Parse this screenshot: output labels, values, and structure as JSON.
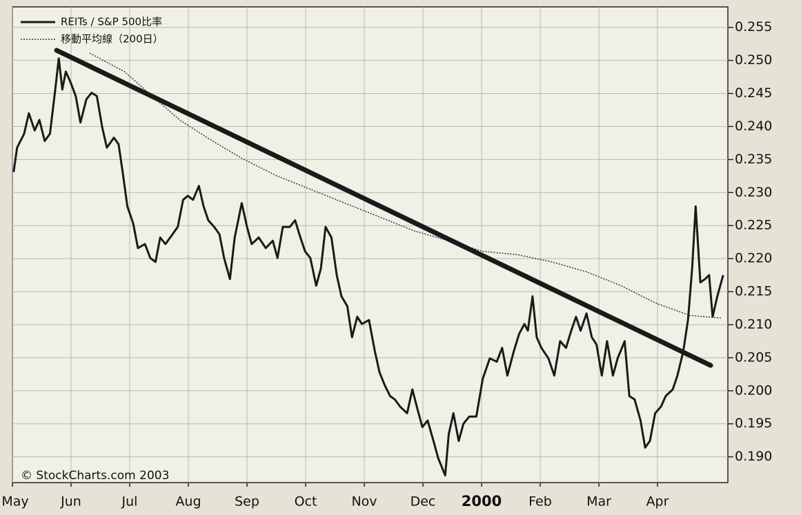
{
  "chart_data": {
    "type": "line",
    "source": "© StockCharts.com 2003",
    "xlim": [
      0,
      12.2
    ],
    "ylim": [
      0.1861,
      0.2581
    ],
    "xticks": [
      {
        "value": 0,
        "label": "May"
      },
      {
        "value": 1,
        "label": "Jun"
      },
      {
        "value": 2,
        "label": "Jul"
      },
      {
        "value": 3,
        "label": "Aug"
      },
      {
        "value": 4,
        "label": "Sep"
      },
      {
        "value": 5,
        "label": "Oct"
      },
      {
        "value": 6,
        "label": "Nov"
      },
      {
        "value": 7,
        "label": "Dec"
      },
      {
        "value": 8,
        "label": "2000"
      },
      {
        "value": 9,
        "label": "Feb"
      },
      {
        "value": 10,
        "label": "Mar"
      },
      {
        "value": 11,
        "label": "Apr"
      }
    ],
    "yticks": [
      {
        "value": 0.19,
        "label": "0.190"
      },
      0.195,
      {
        "value": 0.2,
        "label": "0.200"
      },
      0.205,
      {
        "value": 0.21,
        "label": "0.210"
      },
      0.215,
      {
        "value": 0.22,
        "label": "0.220"
      },
      0.225,
      {
        "value": 0.23,
        "label": "0.230"
      },
      0.235,
      {
        "value": 0.24,
        "label": "0.240"
      },
      0.245,
      {
        "value": 0.25,
        "label": "0.250"
      },
      0.255
    ],
    "grid": true,
    "legend": "top-left",
    "series": [
      {
        "name": "REITs / S&P 500比率",
        "color": "#1a1a1a",
        "style": "solid",
        "x": [
          0.02,
          0.08,
          0.2,
          0.28,
          0.38,
          0.46,
          0.55,
          0.64,
          0.73,
          0.79,
          0.85,
          0.91,
          0.99,
          1.08,
          1.16,
          1.26,
          1.35,
          1.44,
          1.53,
          1.61,
          1.73,
          1.81,
          1.88,
          1.96,
          2.06,
          2.14,
          2.26,
          2.35,
          2.44,
          2.52,
          2.61,
          2.73,
          2.82,
          2.91,
          2.99,
          3.08,
          3.18,
          3.26,
          3.34,
          3.44,
          3.53,
          3.61,
          3.71,
          3.79,
          3.91,
          4.0,
          4.08,
          4.2,
          4.32,
          4.44,
          4.52,
          4.61,
          4.73,
          4.82,
          4.91,
          4.99,
          5.08,
          5.18,
          5.26,
          5.34,
          5.44,
          5.53,
          5.61,
          5.71,
          5.79,
          5.88,
          5.96,
          6.08,
          6.18,
          6.26,
          6.35,
          6.44,
          6.52,
          6.61,
          6.73,
          6.82,
          6.91,
          6.99,
          7.08,
          7.18,
          7.26,
          7.38,
          7.44,
          7.52,
          7.61,
          7.69,
          7.79,
          7.91,
          8.02,
          8.14,
          8.26,
          8.35,
          8.44,
          8.55,
          8.64,
          8.73,
          8.79,
          8.87,
          8.94,
          9.02,
          9.14,
          9.24,
          9.34,
          9.44,
          9.53,
          9.61,
          9.69,
          9.79,
          9.88,
          9.96,
          10.05,
          10.14,
          10.24,
          10.32,
          10.44,
          10.52,
          10.61,
          10.71,
          10.79,
          10.87,
          10.96,
          11.06,
          11.14,
          11.26,
          11.34,
          11.44,
          11.52,
          11.59,
          11.65,
          11.73,
          11.81,
          11.88,
          11.94,
          12.02,
          12.12
        ],
        "values": [
          0.2331,
          0.2368,
          0.2389,
          0.242,
          0.2394,
          0.241,
          0.2378,
          0.2389,
          0.2456,
          0.2503,
          0.2456,
          0.2483,
          0.2467,
          0.2446,
          0.2406,
          0.2441,
          0.2451,
          0.2446,
          0.2399,
          0.2368,
          0.2383,
          0.2373,
          0.2331,
          0.2279,
          0.2253,
          0.2216,
          0.2222,
          0.2201,
          0.2195,
          0.2232,
          0.2222,
          0.2237,
          0.2248,
          0.2289,
          0.2295,
          0.2289,
          0.231,
          0.2279,
          0.2258,
          0.2248,
          0.2237,
          0.2201,
          0.2169,
          0.2232,
          0.2284,
          0.2248,
          0.2222,
          0.2232,
          0.2216,
          0.2227,
          0.2201,
          0.2248,
          0.2248,
          0.2258,
          0.2232,
          0.2211,
          0.2201,
          0.2159,
          0.2185,
          0.2248,
          0.2232,
          0.2175,
          0.2143,
          0.2128,
          0.2081,
          0.2112,
          0.2101,
          0.2107,
          0.206,
          0.2028,
          0.2008,
          0.1992,
          0.1987,
          0.1976,
          0.1966,
          0.2002,
          0.1971,
          0.1945,
          0.1955,
          0.1924,
          0.1898,
          0.1872,
          0.1934,
          0.1966,
          0.1924,
          0.195,
          0.1961,
          0.1961,
          0.2018,
          0.2049,
          0.2044,
          0.2065,
          0.2023,
          0.206,
          0.2086,
          0.2101,
          0.2091,
          0.2143,
          0.2081,
          0.2065,
          0.2049,
          0.2023,
          0.2075,
          0.2065,
          0.2091,
          0.2112,
          0.2091,
          0.2117,
          0.2081,
          0.207,
          0.2023,
          0.2075,
          0.2023,
          0.2049,
          0.2075,
          0.1992,
          0.1987,
          0.1955,
          0.1914,
          0.1924,
          0.1966,
          0.1976,
          0.1992,
          0.2002,
          0.2023,
          0.206,
          0.2107,
          0.2185,
          0.2279,
          0.2164,
          0.2169,
          0.2175,
          0.2112,
          0.2143,
          0.2175
        ]
      },
      {
        "name": "移動平均線（200日）",
        "color": "#333333",
        "style": "dotted",
        "x": [
          1.32,
          1.91,
          2.32,
          2.85,
          3.32,
          3.91,
          4.49,
          5.08,
          5.67,
          6.26,
          6.85,
          7.44,
          8.02,
          8.61,
          9.2,
          9.79,
          10.38,
          10.96,
          11.55,
          12.08
        ],
        "values": [
          0.2511,
          0.2483,
          0.2451,
          0.241,
          0.2383,
          0.2352,
          0.2326,
          0.2305,
          0.2284,
          0.2263,
          0.2242,
          0.2227,
          0.2211,
          0.2206,
          0.2195,
          0.218,
          0.2159,
          0.2133,
          0.2114,
          0.211
        ]
      }
    ]
  }
}
